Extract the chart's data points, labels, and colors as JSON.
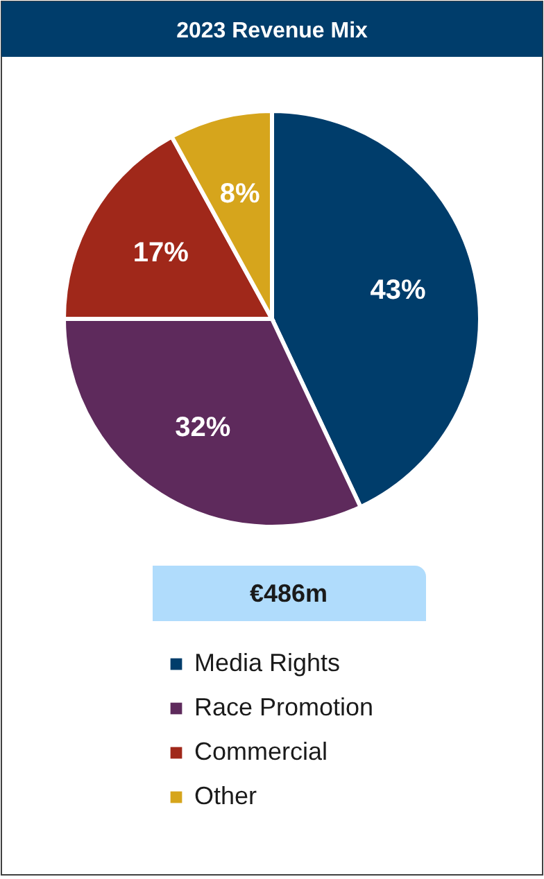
{
  "chart_data": {
    "type": "pie",
    "title": "2023 Revenue Mix",
    "categories": [
      "Media Rights",
      "Race Promotion",
      "Commercial",
      "Other"
    ],
    "values": [
      43,
      32,
      17,
      8
    ],
    "colors": [
      "#003d6b",
      "#5e2a5c",
      "#a0281a",
      "#d6a51c"
    ],
    "value_labels": [
      "43%",
      "32%",
      "17%",
      "8%"
    ],
    "annotations": [
      "€486m"
    ],
    "legend": "bottom"
  }
}
